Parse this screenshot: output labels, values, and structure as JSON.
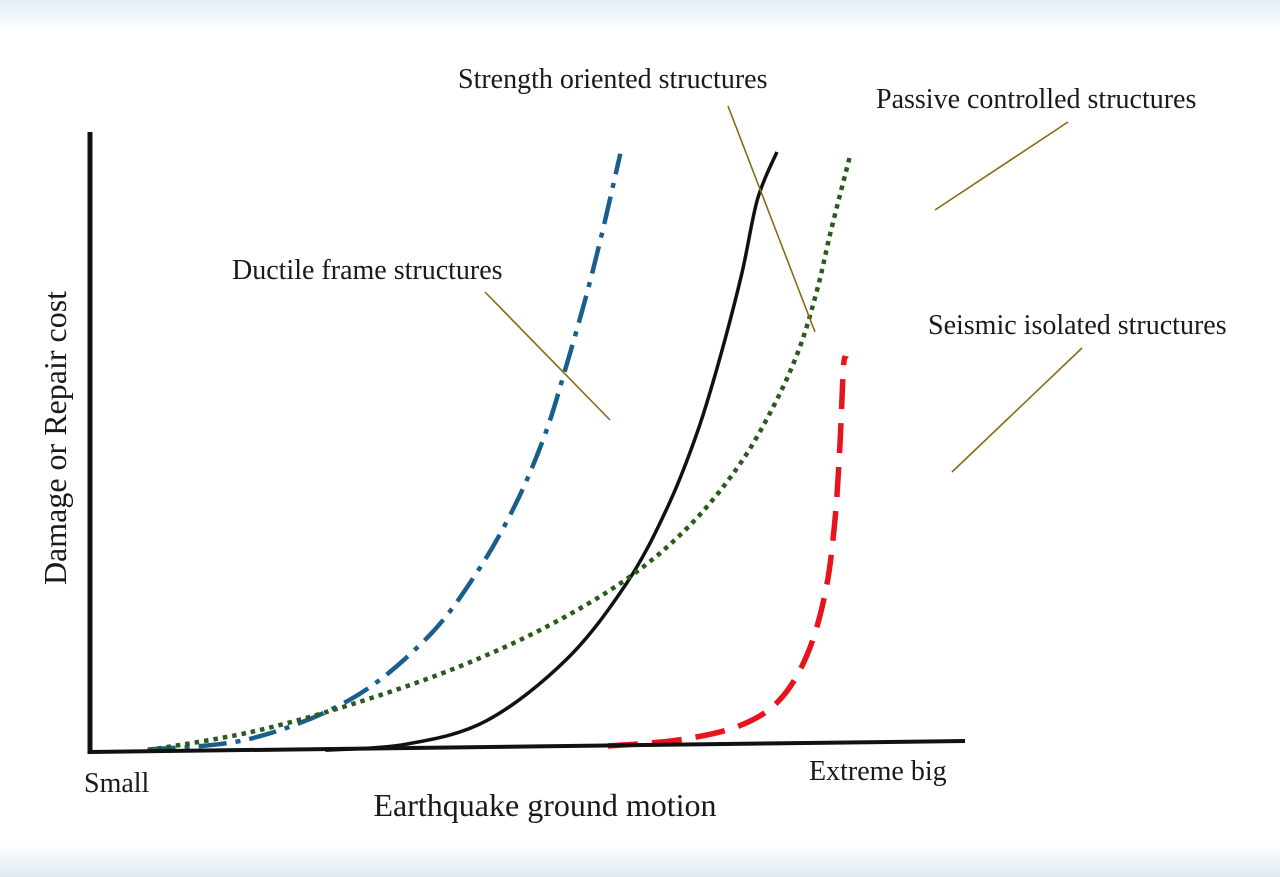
{
  "chart_data": {
    "type": "line",
    "xlabel": "Earthquake ground motion",
    "ylabel": "Damage or Repair cost",
    "x_tick_labels": [
      "Small",
      "Extreme big"
    ],
    "xlim": [
      0,
      1
    ],
    "ylim": [
      0,
      1
    ],
    "grid": false,
    "legend": "none",
    "series": [
      {
        "name": "Ductile frame structures",
        "style": "dash-dot",
        "color": "#1a5f8c",
        "x": [
          0.066,
          0.183,
          0.298,
          0.385,
          0.442,
          0.486,
          0.52,
          0.545,
          0.568,
          0.588,
          0.606
        ],
        "y": [
          0.004,
          0.022,
          0.088,
          0.19,
          0.299,
          0.412,
          0.529,
          0.647,
          0.765,
          0.882,
          0.997
        ]
      },
      {
        "name": "Strength oriented structures",
        "style": "solid",
        "color": "#111111",
        "x": [
          0.269,
          0.361,
          0.453,
          0.545,
          0.614,
          0.66,
          0.695,
          0.722,
          0.745,
          0.763,
          0.785
        ],
        "y": [
          0.003,
          0.013,
          0.052,
          0.155,
          0.283,
          0.408,
          0.537,
          0.668,
          0.798,
          0.922,
          1.0
        ]
      },
      {
        "name": "Passive controlled structures",
        "style": "dotted",
        "color": "#2a5a1c",
        "x": [
          0.066,
          0.183,
          0.298,
          0.418,
          0.522,
          0.613,
          0.683,
          0.739,
          0.779,
          0.81,
          0.831,
          0.847,
          0.868
        ],
        "y": [
          0.003,
          0.033,
          0.079,
          0.14,
          0.209,
          0.288,
          0.374,
          0.472,
          0.57,
          0.67,
          0.77,
          0.87,
          0.99
        ]
      },
      {
        "name": "Seismic isolated structures",
        "style": "dashed",
        "color": "#e8141c",
        "x": [
          0.592,
          0.672,
          0.741,
          0.787,
          0.819,
          0.84,
          0.851,
          0.857,
          0.861,
          0.864
        ],
        "y": [
          0.01,
          0.02,
          0.043,
          0.085,
          0.16,
          0.263,
          0.38,
          0.51,
          0.64,
          0.66
        ]
      }
    ]
  }
}
